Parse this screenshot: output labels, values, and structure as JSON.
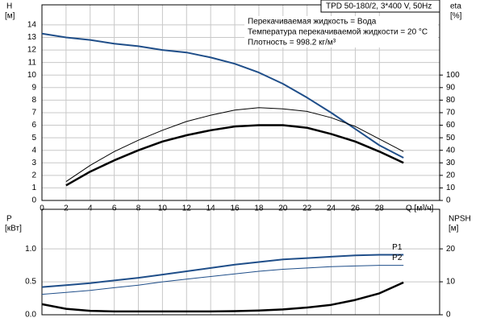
{
  "chart_data": [
    {
      "type": "line",
      "title": "TPD 50-180/2, 3*400 V, 50Hz",
      "annotations": [
        "Перекачиваемая жидкость = Вода",
        "Температура перекачиваемой жидкости = 20 °C",
        "Плотность = 998.2 кг/м³"
      ],
      "ylabel": "H",
      "ylabel_unit": "[м]",
      "y2label": "eta",
      "y2label_unit": "[%]",
      "xlabel": "Q [м³/ч]",
      "x": [
        0,
        2,
        4,
        6,
        8,
        10,
        12,
        14,
        16,
        18,
        20,
        22,
        24,
        26,
        28,
        30
      ],
      "xlim": [
        0,
        33
      ],
      "xticks": [
        0,
        2,
        4,
        6,
        8,
        10,
        12,
        14,
        16,
        18,
        20,
        22,
        24,
        26,
        28
      ],
      "ylim": [
        0,
        15.6
      ],
      "yticks": [
        0,
        1,
        2,
        3,
        4,
        5,
        6,
        7,
        8,
        9,
        10,
        11,
        12,
        13,
        14
      ],
      "y2lim": [
        0,
        156
      ],
      "y2ticks": [
        0,
        10,
        20,
        30,
        40,
        50,
        60,
        70,
        80,
        90,
        100
      ],
      "grid": true,
      "series": [
        {
          "color": "#1f4e89",
          "width": 2,
          "values": [
            13.3,
            13.0,
            12.8,
            12.5,
            12.3,
            12.0,
            11.8,
            11.4,
            10.9,
            10.2,
            9.3,
            8.2,
            7.0,
            5.7,
            4.4,
            3.4
          ]
        },
        {
          "color": "#000000",
          "width": 1,
          "axis": "y2",
          "values": [
            null,
            15,
            28,
            39,
            48,
            56,
            63,
            68,
            72,
            74,
            73,
            71,
            66,
            59,
            49,
            39
          ]
        },
        {
          "color": "#000000",
          "width": 2.5,
          "axis": "y2",
          "values": [
            null,
            12,
            23,
            32,
            40,
            47,
            52,
            56,
            59,
            60,
            60,
            58,
            53,
            47,
            39,
            30
          ]
        }
      ]
    },
    {
      "type": "line",
      "ylabel": "P",
      "ylabel_unit": "[кВт]",
      "y2label": "NPSH",
      "y2label_unit": "[м]",
      "x": [
        0,
        2,
        4,
        6,
        8,
        10,
        12,
        14,
        16,
        18,
        20,
        22,
        24,
        26,
        28,
        30
      ],
      "xlim": [
        0,
        33
      ],
      "xticks": [
        0,
        2,
        4,
        6,
        8,
        10,
        12,
        14,
        16,
        18,
        20,
        22,
        24,
        26,
        28
      ],
      "xtick_labels": false,
      "ylim": [
        0,
        1.6
      ],
      "yticks": [
        {
          "value": 0,
          "label": "0.0"
        },
        0.5,
        {
          "value": 1,
          "label": "1.0"
        }
      ],
      "y2lim": [
        0,
        32
      ],
      "y2ticks": [
        0,
        10,
        20
      ],
      "grid": true,
      "series": [
        {
          "name": "P1",
          "color": "#1f4e89",
          "width": 2,
          "values": [
            0.42,
            0.45,
            0.48,
            0.52,
            0.56,
            0.61,
            0.66,
            0.71,
            0.76,
            0.8,
            0.84,
            0.86,
            0.88,
            0.9,
            0.91,
            0.91
          ]
        },
        {
          "name": "P2",
          "color": "#1f4e89",
          "width": 1,
          "values": [
            0.31,
            0.34,
            0.37,
            0.41,
            0.45,
            0.5,
            0.54,
            0.58,
            0.62,
            0.66,
            0.69,
            0.71,
            0.73,
            0.74,
            0.75,
            0.75
          ]
        },
        {
          "color": "#000000",
          "width": 2.5,
          "axis": "y2",
          "values": [
            3.2,
            1.8,
            1.2,
            1.0,
            1.0,
            1.0,
            1.0,
            1.0,
            1.1,
            1.3,
            1.6,
            2.2,
            3.0,
            4.5,
            6.5,
            9.8
          ]
        }
      ]
    }
  ]
}
